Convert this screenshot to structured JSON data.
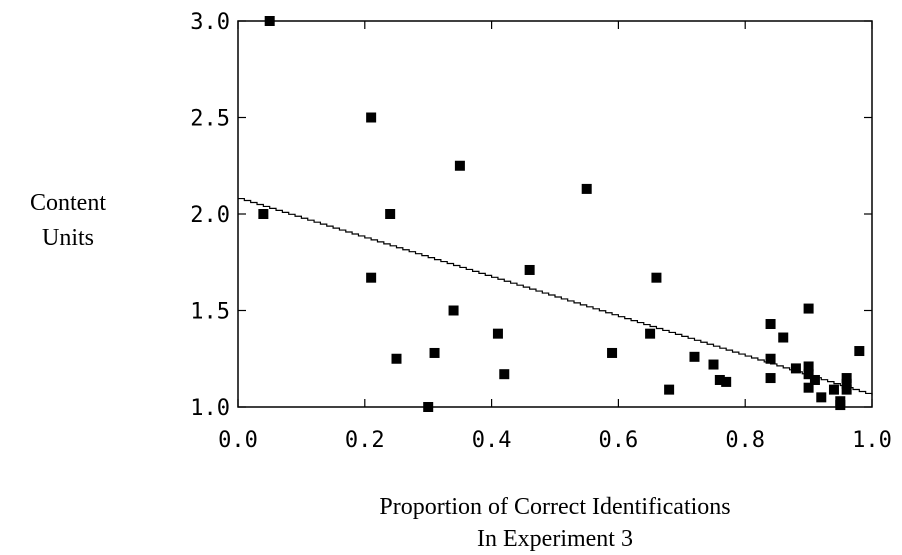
{
  "chart_data": {
    "type": "scatter",
    "title": "",
    "xlabel": "Proportion of Correct Identifications In Experiment 3",
    "xlabel_lines": [
      "Proportion of Correct Identifications",
      "In Experiment 3"
    ],
    "ylabel": "Content Units",
    "ylabel_lines": [
      "Content",
      "Units"
    ],
    "xlim": [
      0.0,
      1.0
    ],
    "ylim": [
      1.0,
      3.0
    ],
    "x_ticks": [
      0.0,
      0.2,
      0.4,
      0.6,
      0.8,
      1.0
    ],
    "x_tick_labels": [
      "0.0",
      "0.2",
      "0.4",
      "0.6",
      "0.8",
      "1.0"
    ],
    "y_ticks": [
      1.0,
      1.5,
      2.0,
      2.5,
      3.0
    ],
    "y_tick_labels": [
      "1.0",
      "1.5",
      "2.0",
      "2.5",
      "3.0"
    ],
    "grid": false,
    "legend": "none",
    "marker": "square",
    "marker_color": "#000000",
    "series": [
      {
        "values": [
          {
            "x": 0.05,
            "y": 3.0
          },
          {
            "x": 0.04,
            "y": 2.0
          },
          {
            "x": 0.21,
            "y": 2.5
          },
          {
            "x": 0.21,
            "y": 1.67
          },
          {
            "x": 0.24,
            "y": 2.0
          },
          {
            "x": 0.25,
            "y": 1.25
          },
          {
            "x": 0.3,
            "y": 1.0
          },
          {
            "x": 0.31,
            "y": 1.28
          },
          {
            "x": 0.34,
            "y": 1.5
          },
          {
            "x": 0.35,
            "y": 2.25
          },
          {
            "x": 0.41,
            "y": 1.38
          },
          {
            "x": 0.42,
            "y": 1.17
          },
          {
            "x": 0.46,
            "y": 1.71
          },
          {
            "x": 0.55,
            "y": 2.13
          },
          {
            "x": 0.59,
            "y": 1.28
          },
          {
            "x": 0.65,
            "y": 1.38
          },
          {
            "x": 0.66,
            "y": 1.67
          },
          {
            "x": 0.68,
            "y": 1.09
          },
          {
            "x": 0.72,
            "y": 1.26
          },
          {
            "x": 0.75,
            "y": 1.22
          },
          {
            "x": 0.76,
            "y": 1.14
          },
          {
            "x": 0.77,
            "y": 1.13
          },
          {
            "x": 0.84,
            "y": 1.43
          },
          {
            "x": 0.84,
            "y": 1.25
          },
          {
            "x": 0.84,
            "y": 1.15
          },
          {
            "x": 0.86,
            "y": 1.36
          },
          {
            "x": 0.88,
            "y": 1.2
          },
          {
            "x": 0.9,
            "y": 1.51
          },
          {
            "x": 0.9,
            "y": 1.21
          },
          {
            "x": 0.9,
            "y": 1.17
          },
          {
            "x": 0.9,
            "y": 1.1
          },
          {
            "x": 0.91,
            "y": 1.14
          },
          {
            "x": 0.92,
            "y": 1.05
          },
          {
            "x": 0.94,
            "y": 1.09
          },
          {
            "x": 0.95,
            "y": 1.03
          },
          {
            "x": 0.95,
            "y": 1.01
          },
          {
            "x": 0.96,
            "y": 1.15
          },
          {
            "x": 0.96,
            "y": 1.12
          },
          {
            "x": 0.96,
            "y": 1.09
          },
          {
            "x": 0.98,
            "y": 1.29
          }
        ]
      }
    ],
    "fit_line": {
      "x": [
        0.0,
        1.0
      ],
      "y": [
        2.08,
        1.06
      ]
    }
  }
}
